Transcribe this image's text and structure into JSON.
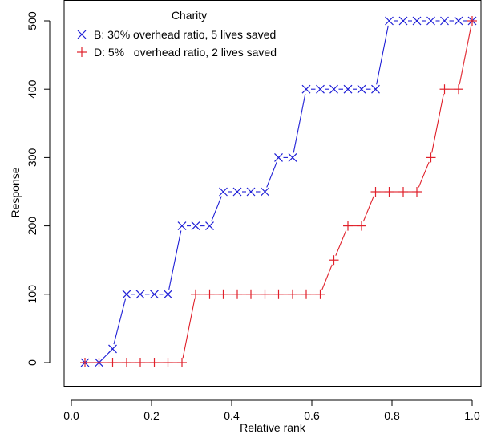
{
  "chart_data": {
    "type": "line",
    "title": "",
    "xlabel": "Relative rank",
    "ylabel": "Response",
    "xlim": [
      0.0,
      1.0
    ],
    "ylim": [
      0,
      500
    ],
    "xticks": [
      "0.0",
      "0.2",
      "0.4",
      "0.6",
      "0.8",
      "1.0"
    ],
    "yticks": [
      "0",
      "100",
      "200",
      "300",
      "400",
      "500"
    ],
    "grid": false,
    "legend": {
      "title": "Charity",
      "position": "top-left",
      "entries": [
        "B: 30% overhead ratio, 5 lives saved",
        "D: 5%   overhead ratio, 2 lives saved"
      ]
    },
    "series": [
      {
        "name": "B: 30% overhead ratio, 5 lives saved",
        "marker": "x",
        "color": "#1f1fd6",
        "x": [
          0.034,
          0.069,
          0.103,
          0.138,
          0.172,
          0.207,
          0.241,
          0.276,
          0.31,
          0.345,
          0.379,
          0.414,
          0.448,
          0.483,
          0.517,
          0.552,
          0.586,
          0.621,
          0.655,
          0.69,
          0.724,
          0.759,
          0.793,
          0.828,
          0.862,
          0.897,
          0.931,
          0.966,
          1.0
        ],
        "y": [
          0,
          0,
          20,
          100,
          100,
          100,
          100,
          200,
          200,
          200,
          250,
          250,
          250,
          250,
          300,
          300,
          400,
          400,
          400,
          400,
          400,
          400,
          500,
          500,
          500,
          500,
          500,
          500,
          500
        ]
      },
      {
        "name": "D: 5%   overhead ratio, 2 lives saved",
        "marker": "+",
        "color": "#e0202a",
        "x": [
          0.034,
          0.069,
          0.103,
          0.138,
          0.172,
          0.207,
          0.241,
          0.276,
          0.31,
          0.345,
          0.379,
          0.414,
          0.448,
          0.483,
          0.517,
          0.552,
          0.586,
          0.621,
          0.655,
          0.69,
          0.724,
          0.759,
          0.793,
          0.828,
          0.862,
          0.897,
          0.931,
          0.966,
          1.0
        ],
        "y": [
          0,
          0,
          0,
          0,
          0,
          0,
          0,
          0,
          100,
          100,
          100,
          100,
          100,
          100,
          100,
          100,
          100,
          100,
          150,
          200,
          200,
          250,
          250,
          250,
          250,
          300,
          400,
          400,
          500
        ]
      }
    ]
  }
}
